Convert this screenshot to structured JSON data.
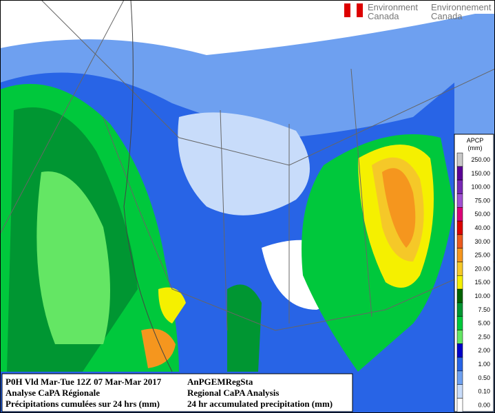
{
  "header": {
    "logo_left": [
      "Environment",
      "Canada"
    ],
    "logo_right": [
      "Environnement",
      "Canada"
    ]
  },
  "legend": {
    "title": "APCP",
    "unit": "(mm)",
    "entries": [
      {
        "label": "250.00",
        "color": "#c8c8c8"
      },
      {
        "label": "150.00",
        "color": "#5a0096"
      },
      {
        "label": "100.00",
        "color": "#7828b4"
      },
      {
        "label": "75.00",
        "color": "#a050d2"
      },
      {
        "label": "50.00",
        "color": "#dc0078"
      },
      {
        "label": "40.00",
        "color": "#dc0000"
      },
      {
        "label": "30.00",
        "color": "#eb5a1e"
      },
      {
        "label": "25.00",
        "color": "#f5961e"
      },
      {
        "label": "20.00",
        "color": "#f5c828"
      },
      {
        "label": "15.00",
        "color": "#f5f000"
      },
      {
        "label": "10.00",
        "color": "#006400"
      },
      {
        "label": "7.50",
        "color": "#009632"
      },
      {
        "label": "5.00",
        "color": "#00c83c"
      },
      {
        "label": "2.50",
        "color": "#64e664"
      },
      {
        "label": "2.00",
        "color": "#0000c8"
      },
      {
        "label": "1.00",
        "color": "#2864e6"
      },
      {
        "label": "0.50",
        "color": "#6ea0f0"
      },
      {
        "label": "0.10",
        "color": "#c8dcfa"
      },
      {
        "label": "0.00",
        "color": "#ffffff"
      }
    ]
  },
  "info": {
    "left": [
      "P0H Vld Mar-Tue 12Z 07 Mar-Mar 2017",
      "Analyse CaPA Régionale",
      "Précipitations cumulées sur 24 hrs (mm)"
    ],
    "right": [
      "AnPGEMRegSta",
      "Regional CaPA Analysis",
      "24 hr accumulated precipitation (mm)"
    ]
  }
}
